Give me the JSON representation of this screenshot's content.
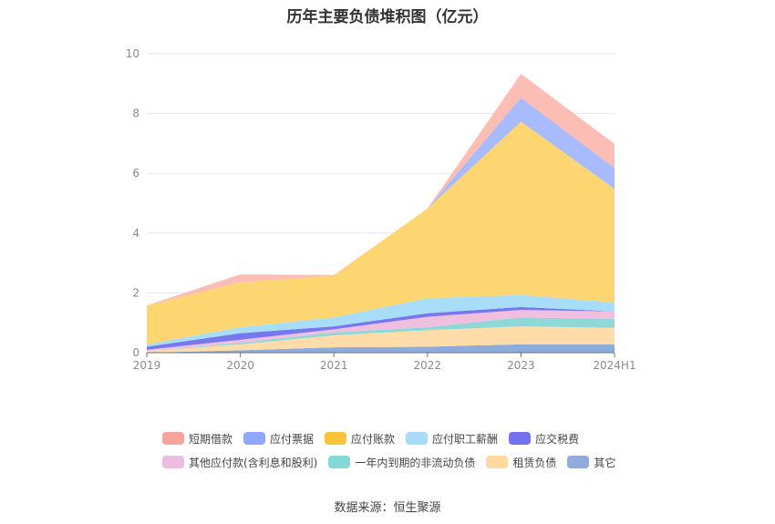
{
  "chart_data": {
    "type": "area",
    "stacked": true,
    "title": "历年主要负债堆积图（亿元）",
    "categories": [
      "2019",
      "2020",
      "2021",
      "2022",
      "2023",
      "2024H1"
    ],
    "ylim": [
      0,
      10
    ],
    "yticks": [
      0,
      2,
      4,
      6,
      8,
      10
    ],
    "grid": true,
    "legend_position": "bottom",
    "series": [
      {
        "name": "其它",
        "color": "#8fabdb",
        "values": [
          0.0,
          0.08,
          0.18,
          0.2,
          0.28,
          0.28
        ]
      },
      {
        "name": "租赁负债",
        "color": "#ffdca8",
        "values": [
          0.05,
          0.2,
          0.4,
          0.55,
          0.6,
          0.55
        ]
      },
      {
        "name": "一年内到期的非流动负债",
        "color": "#8fd8d8",
        "values": [
          0.0,
          0.05,
          0.1,
          0.1,
          0.3,
          0.3
        ]
      },
      {
        "name": "其他应付款(含利息和股利)",
        "color": "#f0bfe0",
        "values": [
          0.05,
          0.1,
          0.1,
          0.35,
          0.25,
          0.25
        ]
      },
      {
        "name": "应交税费",
        "color": "#7777ee",
        "values": [
          0.1,
          0.22,
          0.1,
          0.12,
          0.1,
          0.0
        ]
      },
      {
        "name": "应付职工薪酬",
        "color": "#a8ddf7",
        "values": [
          0.08,
          0.2,
          0.3,
          0.5,
          0.4,
          0.3
        ]
      },
      {
        "name": "应付账款",
        "color": "#fdd571",
        "values": [
          1.3,
          1.5,
          1.4,
          3.0,
          5.8,
          3.8
        ]
      },
      {
        "name": "应付票据",
        "color": "#a8bbff",
        "values": [
          0.0,
          0.0,
          0.0,
          0.0,
          0.8,
          0.7
        ]
      },
      {
        "name": "短期借款",
        "color": "#fbbdb4",
        "values": [
          0.0,
          0.27,
          0.02,
          0.0,
          0.8,
          0.8
        ]
      }
    ]
  },
  "legend": [
    {
      "label": "短期借款",
      "color": "#f6a59c"
    },
    {
      "label": "应付票据",
      "color": "#8ea7ff"
    },
    {
      "label": "应付账款",
      "color": "#fbc53a"
    },
    {
      "label": "应付职工薪酬",
      "color": "#a6dcf8"
    },
    {
      "label": "应交税费",
      "color": "#7272f0"
    },
    {
      "label": "其他应付款(含利息和股利)",
      "color": "#ecbde0"
    },
    {
      "label": "一年内到期的非流动负债",
      "color": "#86d8d8"
    },
    {
      "label": "租赁负债",
      "color": "#ffd9a0"
    },
    {
      "label": "其它",
      "color": "#91acdc"
    }
  ],
  "source": "数据来源：恒生聚源"
}
